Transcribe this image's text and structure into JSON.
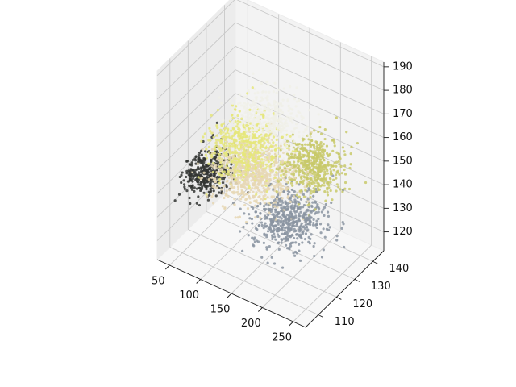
{
  "chart_data": {
    "type": "scatter",
    "projection": "3d",
    "title": "",
    "xlabel": "",
    "ylabel": "",
    "zlabel": "",
    "grid": true,
    "legend": "none",
    "xlim": [
      30,
      270
    ],
    "ylim": [
      103,
      146
    ],
    "zlim": [
      112,
      192
    ],
    "xticks": [
      50,
      100,
      150,
      200,
      250
    ],
    "yticks": [
      110,
      120,
      130,
      140
    ],
    "zticks": [
      120,
      130,
      140,
      150,
      160,
      170,
      180,
      190
    ],
    "pane_colors": {
      "left": "#ececec",
      "right": "#f3f3f3",
      "floor": "#f7f7f7"
    },
    "clusters": [
      {
        "color": "#333533",
        "center": {
          "x": 45,
          "y": 123,
          "z": 136
        },
        "spread": {
          "x": 18,
          "y": 5,
          "z": 4
        },
        "count": 420
      },
      {
        "color": "#e6d7b4",
        "center": {
          "x": 115,
          "y": 127,
          "z": 141
        },
        "spread": {
          "x": 30,
          "y": 6,
          "z": 5
        },
        "count": 700
      },
      {
        "color": "#e5e67a",
        "center": {
          "x": 100,
          "y": 128,
          "z": 149
        },
        "spread": {
          "x": 25,
          "y": 6,
          "z": 5
        },
        "count": 550
      },
      {
        "color": "#f0f0e8",
        "center": {
          "x": 115,
          "y": 135,
          "z": 157
        },
        "spread": {
          "x": 25,
          "y": 6,
          "z": 4
        },
        "count": 450
      },
      {
        "color": "#c8c96a",
        "center": {
          "x": 185,
          "y": 136,
          "z": 145
        },
        "spread": {
          "x": 20,
          "y": 5,
          "z": 5
        },
        "count": 500
      },
      {
        "color": "#8a94a1",
        "center": {
          "x": 180,
          "y": 124,
          "z": 131
        },
        "spread": {
          "x": 25,
          "y": 6,
          "z": 4
        },
        "count": 520
      }
    ]
  }
}
